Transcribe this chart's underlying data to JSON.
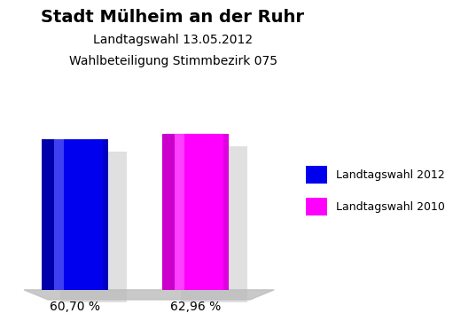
{
  "title": "Stadt Mülheim an der Ruhr",
  "subtitle1": "Landtagswahl 13.05.2012",
  "subtitle2": "Wahlbeteiligung Stimmbezirk 075",
  "values": [
    60.7,
    62.96
  ],
  "bar_colors": [
    "#0000ee",
    "#ff00ff"
  ],
  "bar_dark_colors": [
    "#0000aa",
    "#cc00cc"
  ],
  "bar_labels": [
    "60,70 %",
    "62,96 %"
  ],
  "legend_labels": [
    "Landtagswahl 2012",
    "Landtagswahl 2010"
  ],
  "background_color": "#ffffff",
  "title_fontsize": 14,
  "subtitle_fontsize": 10,
  "label_fontsize": 10,
  "legend_fontsize": 9
}
